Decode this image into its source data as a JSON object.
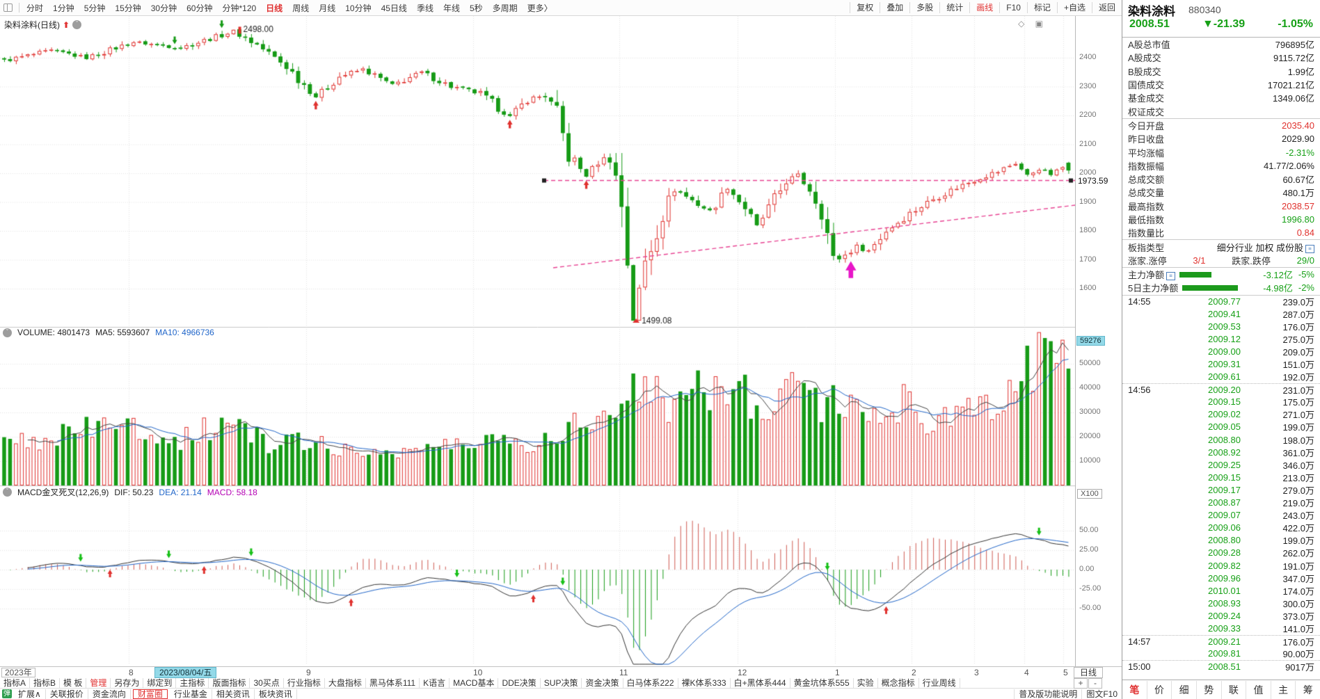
{
  "colors": {
    "up_red": "#e0312e",
    "down_green": "#169b16",
    "blue": "#2166c9",
    "magenta_line": "#e84393",
    "macd_purple": "#b400b4",
    "cyan_tag": "#93d9e8",
    "arrow_magenta": "#e816c8",
    "text_red": "#e03131"
  },
  "toolbar": {
    "periods": [
      "分时",
      "1分钟",
      "5分钟",
      "15分钟",
      "30分钟",
      "60分钟",
      "分钟*120",
      "日线",
      "周线",
      "月线",
      "10分钟",
      "45日线",
      "季线",
      "年线",
      "5秒",
      "多周期",
      "更多〉"
    ],
    "active_period": "日线",
    "right_tools": [
      "复权",
      "叠加",
      "多股",
      "统计",
      "画线",
      "F10",
      "标记",
      "+自选",
      "返回"
    ],
    "active_tool": "画线"
  },
  "chart": {
    "title": "染料涂料(日线)",
    "corner_icons": "◇ ▣",
    "labels": {
      "peak": "2498.00",
      "low": "1499.08",
      "hline": "1973.59"
    },
    "y_ticks": [
      "2400",
      "2300",
      "2200",
      "2100",
      "2000",
      "1900",
      "1800",
      "1700",
      "1600"
    ],
    "volume": {
      "header_volume": "VOLUME: 4801473",
      "header_ma5": "MA5: 5593607",
      "header_ma10": "MA10: 4966736",
      "tag": "59276",
      "unit": "X100",
      "ticks": [
        "50000",
        "40000",
        "30000",
        "20000",
        "10000"
      ]
    },
    "macd": {
      "name": "MACD金叉死叉(12,26,9)",
      "dif": "DIF: 50.23",
      "dea": "DEA: 21.14",
      "macd": "MACD: 58.18",
      "ticks": [
        "50.00",
        "25.00",
        "0.00",
        "-25.00",
        "-50.00"
      ]
    },
    "timeline": {
      "year": "2023年",
      "highlight_date": "2023/08/04/五",
      "period": "日线",
      "plus": "+",
      "minus": "-",
      "months": [
        [
          "8",
          185
        ],
        [
          "9",
          440
        ],
        [
          "10",
          680
        ],
        [
          "11",
          890
        ],
        [
          "12",
          1060
        ],
        [
          "1",
          1200
        ],
        [
          "2",
          1310
        ],
        [
          "3",
          1400
        ],
        [
          "4",
          1472
        ],
        [
          "5",
          1528
        ]
      ]
    }
  },
  "chart_data": {
    "type": "candlestick",
    "bars": 182,
    "close_anchors": [
      [
        0,
        2390
      ],
      [
        8,
        2425
      ],
      [
        14,
        2400
      ],
      [
        22,
        2455
      ],
      [
        30,
        2435
      ],
      [
        39,
        2492
      ],
      [
        43,
        2445
      ],
      [
        48,
        2370
      ],
      [
        53,
        2265
      ],
      [
        57,
        2335
      ],
      [
        61,
        2360
      ],
      [
        66,
        2305
      ],
      [
        71,
        2350
      ],
      [
        76,
        2300
      ],
      [
        81,
        2275
      ],
      [
        86,
        2195
      ],
      [
        89,
        2255
      ],
      [
        92,
        2270
      ],
      [
        94,
        2200
      ],
      [
        96,
        2060
      ],
      [
        99,
        1990
      ],
      [
        101,
        2040
      ],
      [
        103,
        2058
      ],
      [
        105,
        1900
      ],
      [
        107,
        1500
      ],
      [
        109,
        1690
      ],
      [
        112,
        1860
      ],
      [
        114,
        1945
      ],
      [
        117,
        1905
      ],
      [
        120,
        1865
      ],
      [
        123,
        1950
      ],
      [
        126,
        1880
      ],
      [
        128,
        1815
      ],
      [
        131,
        1905
      ],
      [
        133,
        1975
      ],
      [
        135,
        1990
      ],
      [
        137,
        1945
      ],
      [
        139,
        1880
      ],
      [
        141,
        1695
      ],
      [
        143,
        1715
      ],
      [
        145,
        1745
      ],
      [
        147,
        1730
      ],
      [
        150,
        1800
      ],
      [
        154,
        1860
      ],
      [
        158,
        1910
      ],
      [
        162,
        1950
      ],
      [
        166,
        1985
      ],
      [
        169,
        2005
      ],
      [
        172,
        2035
      ],
      [
        174,
        1990
      ],
      [
        176,
        2015
      ],
      [
        178,
        1995
      ],
      [
        180,
        2020
      ],
      [
        181,
        2008.51
      ]
    ],
    "volume_anchors": [
      [
        0,
        16000
      ],
      [
        10,
        21000
      ],
      [
        20,
        25000
      ],
      [
        30,
        19000
      ],
      [
        39,
        27000
      ],
      [
        45,
        16000
      ],
      [
        53,
        19000
      ],
      [
        60,
        13000
      ],
      [
        70,
        15000
      ],
      [
        80,
        17000
      ],
      [
        86,
        21000
      ],
      [
        90,
        16000
      ],
      [
        96,
        24000
      ],
      [
        99,
        31000
      ],
      [
        102,
        26000
      ],
      [
        105,
        36000
      ],
      [
        107,
        45000
      ],
      [
        110,
        38000
      ],
      [
        113,
        32000
      ],
      [
        116,
        46000
      ],
      [
        119,
        41000
      ],
      [
        122,
        36000
      ],
      [
        125,
        43000
      ],
      [
        128,
        31000
      ],
      [
        131,
        37000
      ],
      [
        134,
        44000
      ],
      [
        136,
        39000
      ],
      [
        139,
        34000
      ],
      [
        141,
        37000
      ],
      [
        144,
        30000
      ],
      [
        147,
        27000
      ],
      [
        150,
        31000
      ],
      [
        153,
        34000
      ],
      [
        156,
        28000
      ],
      [
        159,
        25000
      ],
      [
        162,
        28000
      ],
      [
        165,
        31000
      ],
      [
        168,
        36000
      ],
      [
        171,
        41000
      ],
      [
        174,
        46000
      ],
      [
        176,
        52000
      ],
      [
        178,
        59276
      ],
      [
        179,
        56000
      ],
      [
        181,
        48014
      ]
    ],
    "peak_bar": 39,
    "peak_high": 2498,
    "low_bar": 107,
    "low_value": 1499.08,
    "last": {
      "open": 2035.4,
      "close": 2008.51,
      "high": 2038.57,
      "low": 1996.8
    },
    "hline_value": 1973.59,
    "red_up_bars": [
      53,
      86,
      99
    ],
    "green_down_bars": [
      29,
      37
    ],
    "magenta_arrow_bar": 144,
    "trendline": [
      [
        795,
        362
      ],
      [
        1545,
        272
      ]
    ]
  },
  "quote": {
    "name": "染料涂料",
    "code": "880340",
    "price": "2008.51",
    "change": "▼-21.39",
    "pct": "-1.05%",
    "stats_a": [
      {
        "label": "A股总市值",
        "value": "796895亿",
        "c": "k"
      },
      {
        "label": "A股成交",
        "value": "9115.72亿",
        "c": "k"
      },
      {
        "label": "B股成交",
        "value": "1.99亿",
        "c": "k"
      },
      {
        "label": "国债成交",
        "value": "17021.21亿",
        "c": "k"
      },
      {
        "label": "基金成交",
        "value": "1349.06亿",
        "c": "k"
      },
      {
        "label": "权证成交",
        "value": "",
        "c": "k"
      }
    ],
    "stats_b": [
      {
        "label": "今日开盘",
        "value": "2035.40",
        "c": "r"
      },
      {
        "label": "昨日收盘",
        "value": "2029.90",
        "c": "k"
      },
      {
        "label": "平均涨幅",
        "value": "-2.31%",
        "c": "g"
      },
      {
        "label": "指数振幅",
        "value": "41.77/2.06%",
        "c": "k"
      },
      {
        "label": "总成交额",
        "value": "60.67亿",
        "c": "k"
      },
      {
        "label": "总成交量",
        "value": "480.1万",
        "c": "k"
      },
      {
        "label": "最高指数",
        "value": "2038.57",
        "c": "r"
      },
      {
        "label": "最低指数",
        "value": "1996.80",
        "c": "g"
      },
      {
        "label": "指数量比",
        "value": "0.84",
        "c": "r"
      }
    ],
    "board": {
      "label": "板指类型",
      "value": "细分行业 加权 成份股"
    },
    "updown": {
      "l1": "涨家.涨停",
      "v1": "3/1",
      "l2": "跌家.跌停",
      "v2": "29/0"
    },
    "flows": [
      {
        "label": "主力净额",
        "icon": true,
        "bar": 46,
        "value": "-3.12亿",
        "pct": "-5%"
      },
      {
        "label": "5日主力净额",
        "icon": false,
        "bar": 80,
        "value": "-4.98亿",
        "pct": "-2%"
      }
    ],
    "ticks": [
      [
        "14:55",
        "2009.77",
        "239.0万"
      ],
      [
        "",
        "2009.41",
        "287.0万"
      ],
      [
        "",
        "2009.53",
        "176.0万"
      ],
      [
        "",
        "2009.12",
        "275.0万"
      ],
      [
        "",
        "2009.00",
        "209.0万"
      ],
      [
        "",
        "2009.31",
        "151.0万"
      ],
      [
        "",
        "2009.61",
        "192.0万"
      ],
      [
        "14:56",
        "2009.20",
        "231.0万"
      ],
      [
        "",
        "2009.15",
        "175.0万"
      ],
      [
        "",
        "2009.02",
        "271.0万"
      ],
      [
        "",
        "2009.05",
        "199.0万"
      ],
      [
        "",
        "2008.80",
        "198.0万"
      ],
      [
        "",
        "2008.92",
        "361.0万"
      ],
      [
        "",
        "2009.25",
        "346.0万"
      ],
      [
        "",
        "2009.15",
        "213.0万"
      ],
      [
        "",
        "2009.17",
        "279.0万"
      ],
      [
        "",
        "2008.87",
        "219.0万"
      ],
      [
        "",
        "2009.07",
        "243.0万"
      ],
      [
        "",
        "2009.06",
        "422.0万"
      ],
      [
        "",
        "2008.80",
        "199.0万"
      ],
      [
        "",
        "2009.28",
        "262.0万"
      ],
      [
        "",
        "2009.82",
        "191.0万"
      ],
      [
        "",
        "2009.96",
        "347.0万"
      ],
      [
        "",
        "2010.01",
        "174.0万"
      ],
      [
        "",
        "2008.93",
        "300.0万"
      ],
      [
        "",
        "2009.24",
        "373.0万"
      ],
      [
        "",
        "2009.33",
        "141.0万"
      ],
      [
        "14:57",
        "2009.21",
        "176.0万"
      ],
      [
        "",
        "2009.81",
        "90.00万"
      ],
      [
        "15:00",
        "2008.51",
        "9017万"
      ]
    ],
    "footer_tabs": [
      "笔",
      "价",
      "细",
      "势",
      "联",
      "值",
      "主",
      "筹"
    ],
    "active_footer_tab": "笔"
  },
  "bottom": {
    "tabs1": [
      "指标A",
      "指标B",
      "模 板",
      "管理",
      "另存为",
      "绑定到",
      "主指标",
      "版面指标",
      "30买点",
      "行业指标",
      "大盘指标",
      "黑马体系111",
      "K语言",
      "MACD基本",
      "DDE决策",
      "SUP决策",
      "资金决策",
      "白马体系222",
      "裸K体系333",
      "白+黑体系444",
      "黄金坑体系555",
      "实验",
      "概念指标",
      "行业周线"
    ],
    "active_tab1": "管理",
    "badge": "弹",
    "tabs2": [
      "扩展∧",
      "关联报价",
      "资金流向",
      "财富圈",
      "行业基金",
      "相关资讯",
      "板块资讯"
    ],
    "boxed_tab2": "财富圈",
    "tabs2_right": [
      "普及版功能说明",
      "图文F10"
    ]
  }
}
